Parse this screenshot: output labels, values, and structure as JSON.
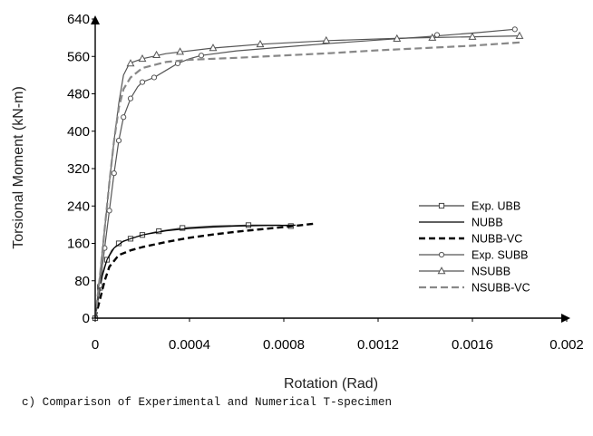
{
  "caption": "c) Comparison of Experimental and Numerical T-specimen",
  "chart_data": {
    "type": "line",
    "xlabel": "Rotation (Rad)",
    "ylabel": "Torsional Moment (kN-m)",
    "xlim": [
      0,
      0.002
    ],
    "ylim": [
      0,
      640
    ],
    "xticks": [
      0,
      0.0004,
      0.0008,
      0.0012,
      0.0016,
      0.002
    ],
    "xtick_labels": [
      "0",
      "0.0004",
      "0.0008",
      "0.0012",
      "0.0016",
      "0.002"
    ],
    "yticks": [
      0,
      80,
      160,
      240,
      320,
      400,
      480,
      560,
      640
    ],
    "ytick_labels": [
      "0",
      "80",
      "160",
      "240",
      "320",
      "400",
      "480",
      "560",
      "640"
    ],
    "grid": false,
    "legend_position": "right",
    "series": [
      {
        "name": "Exp. UBB",
        "color": "#444444",
        "dash": "solid",
        "marker": "square",
        "points": [
          [
            0,
            0
          ],
          [
            1e-05,
            30
          ],
          [
            2e-05,
            65
          ],
          [
            3e-05,
            95
          ],
          [
            5e-05,
            125
          ],
          [
            7e-05,
            145
          ],
          [
            0.0001,
            160
          ],
          [
            0.00015,
            170
          ],
          [
            0.0002,
            178
          ],
          [
            0.00027,
            186
          ],
          [
            0.00037,
            193
          ],
          [
            0.0005,
            197
          ],
          [
            0.00065,
            199
          ],
          [
            0.00078,
            199
          ],
          [
            0.00083,
            197
          ]
        ],
        "marker_points": [
          [
            0,
            0
          ],
          [
            2e-05,
            65
          ],
          [
            5e-05,
            125
          ],
          [
            0.0001,
            160
          ],
          [
            0.00015,
            170
          ],
          [
            0.0002,
            178
          ],
          [
            0.00027,
            186
          ],
          [
            0.00037,
            193
          ],
          [
            0.00065,
            199
          ],
          [
            0.00083,
            197
          ]
        ]
      },
      {
        "name": "NUBB",
        "color": "#000000",
        "dash": "solid",
        "marker": "none",
        "points": [
          [
            0,
            0
          ],
          [
            1e-05,
            35
          ],
          [
            3e-05,
            90
          ],
          [
            5e-05,
            125
          ],
          [
            8e-05,
            150
          ],
          [
            0.00012,
            165
          ],
          [
            0.0002,
            178
          ],
          [
            0.0003,
            187
          ],
          [
            0.0004,
            192
          ],
          [
            0.0005,
            195
          ],
          [
            0.0006,
            197
          ],
          [
            0.0007,
            198
          ],
          [
            0.00085,
            199
          ]
        ],
        "marker_points": []
      },
      {
        "name": "NUBB-VC",
        "color": "#000000",
        "dash": "bold-dash",
        "marker": "none",
        "points": [
          [
            0,
            0
          ],
          [
            2e-05,
            40
          ],
          [
            4e-05,
            80
          ],
          [
            6e-05,
            110
          ],
          [
            0.0001,
            135
          ],
          [
            0.00015,
            145
          ],
          [
            0.0002,
            152
          ],
          [
            0.0003,
            163
          ],
          [
            0.0004,
            172
          ],
          [
            0.0005,
            179
          ],
          [
            0.0006,
            185
          ],
          [
            0.0007,
            190
          ],
          [
            0.0008,
            195
          ],
          [
            0.00093,
            202
          ]
        ],
        "marker_points": []
      },
      {
        "name": "Exp. SUBB",
        "color": "#555555",
        "dash": "solid",
        "marker": "circle",
        "points": [
          [
            0,
            0
          ],
          [
            2e-05,
            70
          ],
          [
            4e-05,
            150
          ],
          [
            6e-05,
            230
          ],
          [
            8e-05,
            310
          ],
          [
            0.0001,
            380
          ],
          [
            0.00012,
            430
          ],
          [
            0.00015,
            470
          ],
          [
            0.00018,
            495
          ],
          [
            0.0002,
            505
          ],
          [
            0.00025,
            515
          ],
          [
            0.0003,
            530
          ],
          [
            0.00035,
            545
          ],
          [
            0.0004,
            555
          ],
          [
            0.00045,
            562
          ],
          [
            0.0006,
            572
          ],
          [
            0.0008,
            580
          ],
          [
            0.001,
            588
          ],
          [
            0.0012,
            595
          ],
          [
            0.0014,
            602
          ],
          [
            0.0016,
            610
          ],
          [
            0.00178,
            618
          ]
        ],
        "marker_points": [
          [
            2e-05,
            70
          ],
          [
            4e-05,
            150
          ],
          [
            6e-05,
            230
          ],
          [
            8e-05,
            310
          ],
          [
            0.0001,
            380
          ],
          [
            0.00012,
            430
          ],
          [
            0.00015,
            470
          ],
          [
            0.0002,
            505
          ],
          [
            0.00025,
            515
          ],
          [
            0.00035,
            545
          ],
          [
            0.00045,
            562
          ],
          [
            0.00145,
            606
          ],
          [
            0.00178,
            618
          ]
        ]
      },
      {
        "name": "NSUBB",
        "color": "#555555",
        "dash": "solid",
        "marker": "triangle",
        "points": [
          [
            0,
            0
          ],
          [
            2e-05,
            90
          ],
          [
            4e-05,
            190
          ],
          [
            6e-05,
            290
          ],
          [
            8e-05,
            380
          ],
          [
            0.0001,
            460
          ],
          [
            0.00012,
            520
          ],
          [
            0.00014,
            540
          ],
          [
            0.00016,
            548
          ],
          [
            0.0002,
            555
          ],
          [
            0.0003,
            566
          ],
          [
            0.0005,
            578
          ],
          [
            0.0007,
            586
          ],
          [
            0.001,
            594
          ],
          [
            0.0013,
            599
          ],
          [
            0.0016,
            602
          ],
          [
            0.0018,
            604
          ]
        ],
        "marker_points": [
          [
            0.00015,
            545
          ],
          [
            0.0002,
            555
          ],
          [
            0.00026,
            563
          ],
          [
            0.00036,
            570
          ],
          [
            0.0005,
            578
          ],
          [
            0.0007,
            586
          ],
          [
            0.00098,
            594
          ],
          [
            0.00128,
            598
          ],
          [
            0.00143,
            600
          ],
          [
            0.0016,
            602
          ],
          [
            0.0018,
            604
          ]
        ]
      },
      {
        "name": "NSUBB-VC",
        "color": "#888888",
        "dash": "dash",
        "marker": "none",
        "points": [
          [
            0,
            0
          ],
          [
            2e-05,
            90
          ],
          [
            4e-05,
            190
          ],
          [
            6e-05,
            290
          ],
          [
            8e-05,
            380
          ],
          [
            0.0001,
            450
          ],
          [
            0.00012,
            490
          ],
          [
            0.00015,
            515
          ],
          [
            0.0002,
            535
          ],
          [
            0.0003,
            548
          ],
          [
            0.0004,
            553
          ],
          [
            0.0006,
            557
          ],
          [
            0.0008,
            562
          ],
          [
            0.001,
            567
          ],
          [
            0.0012,
            573
          ],
          [
            0.0014,
            578
          ],
          [
            0.0016,
            583
          ],
          [
            0.0018,
            590
          ]
        ],
        "marker_points": []
      }
    ]
  }
}
